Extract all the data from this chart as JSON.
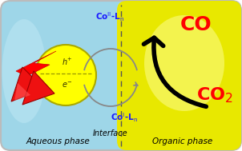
{
  "fig_width": 3.02,
  "fig_height": 1.89,
  "dpi": 100,
  "aqueous_bg": "#9ed6e8",
  "organic_bg": "#e8e800",
  "organic_highlight": "#f5f580",
  "circle_color": "#ffff00",
  "circle_edge": "#aaa800",
  "label_red": "#ff0000",
  "label_blue": "#1a1aff",
  "label_black": "#000000",
  "gray_arrow": "#888888",
  "aqueous_phase": "Aqueous phase",
  "organic_phase": "Organic phase",
  "interface": "Interface"
}
